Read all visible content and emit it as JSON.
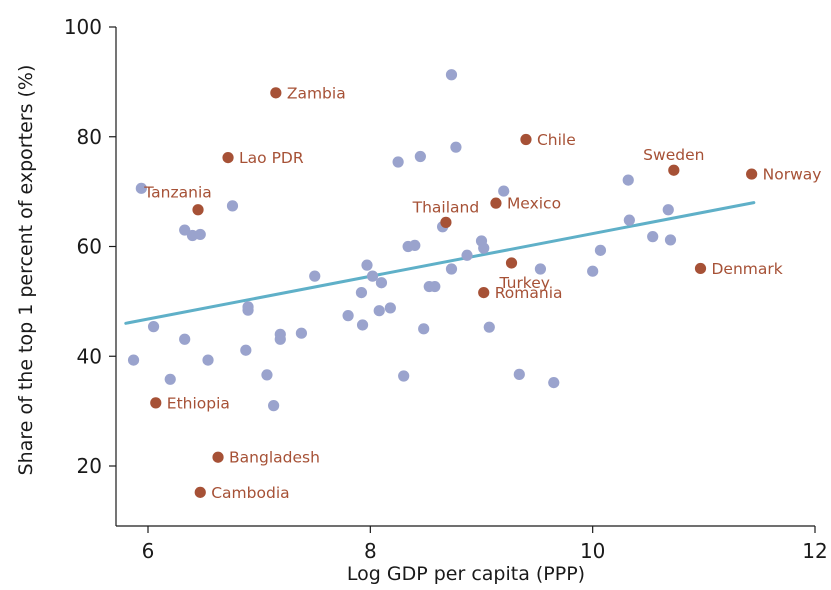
{
  "colors": {
    "other_points": "#9aa3cd",
    "highlighted_points": "#a65136",
    "highlight_label": "#a65136",
    "trend_line": "#5fb0c8",
    "axis": "#1a1a1a"
  },
  "chart_data": {
    "type": "scatter",
    "title": "",
    "xlabel": "Log GDP per capita (PPP)",
    "ylabel": "Share of the top 1 percent of exporters (%)",
    "xlim": [
      5.8,
      12
    ],
    "ylim": [
      10,
      100
    ],
    "x_ticks": [
      6,
      8,
      10,
      12
    ],
    "y_ticks": [
      20,
      40,
      60,
      80,
      100
    ],
    "grid": false,
    "trend_line": {
      "x": [
        5.8,
        11.45
      ],
      "y": [
        46,
        68
      ]
    },
    "highlighted": [
      {
        "name": "Zambia",
        "x": 7.15,
        "y": 88,
        "label_pos": "right"
      },
      {
        "name": "Lao PDR",
        "x": 6.72,
        "y": 76.2,
        "label_pos": "right"
      },
      {
        "name": "Tanzania",
        "x": 6.45,
        "y": 66.7,
        "label_pos": "above-left"
      },
      {
        "name": "Ethiopia",
        "x": 6.07,
        "y": 31.5,
        "label_pos": "right"
      },
      {
        "name": "Bangladesh",
        "x": 6.63,
        "y": 21.6,
        "label_pos": "right"
      },
      {
        "name": "Cambodia",
        "x": 6.47,
        "y": 15.2,
        "label_pos": "right"
      },
      {
        "name": "Chile",
        "x": 9.4,
        "y": 79.5,
        "label_pos": "right"
      },
      {
        "name": "Thailand",
        "x": 8.68,
        "y": 64.4,
        "label_pos": "above"
      },
      {
        "name": "Mexico",
        "x": 9.13,
        "y": 67.9,
        "label_pos": "right"
      },
      {
        "name": "Turkey",
        "x": 9.27,
        "y": 57,
        "label_pos": "below"
      },
      {
        "name": "Romania",
        "x": 9.02,
        "y": 51.6,
        "label_pos": "right"
      },
      {
        "name": "Sweden",
        "x": 10.73,
        "y": 73.9,
        "label_pos": "above"
      },
      {
        "name": "Norway",
        "x": 11.43,
        "y": 73.2,
        "label_pos": "right"
      },
      {
        "name": "Denmark",
        "x": 10.97,
        "y": 56,
        "label_pos": "right"
      }
    ],
    "others": [
      [
        5.87,
        39.3
      ],
      [
        5.94,
        70.6
      ],
      [
        6.05,
        45.4
      ],
      [
        6.2,
        35.8
      ],
      [
        6.33,
        63
      ],
      [
        6.33,
        43.1
      ],
      [
        6.4,
        62
      ],
      [
        6.47,
        62.2
      ],
      [
        6.54,
        39.3
      ],
      [
        6.76,
        67.4
      ],
      [
        6.88,
        41.1
      ],
      [
        6.9,
        48.4
      ],
      [
        6.9,
        49
      ],
      [
        7.07,
        36.6
      ],
      [
        7.13,
        31
      ],
      [
        7.19,
        44
      ],
      [
        7.19,
        43.1
      ],
      [
        7.38,
        44.2
      ],
      [
        7.5,
        54.6
      ],
      [
        7.8,
        47.4
      ],
      [
        7.92,
        51.6
      ],
      [
        7.93,
        45.7
      ],
      [
        7.97,
        56.6
      ],
      [
        8.02,
        54.6
      ],
      [
        8.08,
        48.3
      ],
      [
        8.1,
        53.4
      ],
      [
        8.18,
        48.8
      ],
      [
        8.25,
        75.4
      ],
      [
        8.3,
        36.4
      ],
      [
        8.34,
        60
      ],
      [
        8.4,
        60.2
      ],
      [
        8.45,
        76.4
      ],
      [
        8.48,
        45
      ],
      [
        8.53,
        52.7
      ],
      [
        8.58,
        52.7
      ],
      [
        8.65,
        63.6
      ],
      [
        8.73,
        55.9
      ],
      [
        8.73,
        91.3
      ],
      [
        8.77,
        78.1
      ],
      [
        8.87,
        58.4
      ],
      [
        9.0,
        61
      ],
      [
        9.02,
        59.7
      ],
      [
        9.07,
        45.3
      ],
      [
        9.2,
        70.1
      ],
      [
        9.34,
        36.7
      ],
      [
        9.53,
        55.9
      ],
      [
        9.65,
        35.2
      ],
      [
        10.0,
        55.5
      ],
      [
        10.07,
        59.3
      ],
      [
        10.32,
        72.1
      ],
      [
        10.33,
        64.8
      ],
      [
        10.54,
        61.8
      ],
      [
        10.68,
        66.7
      ],
      [
        10.7,
        61.2
      ]
    ]
  }
}
